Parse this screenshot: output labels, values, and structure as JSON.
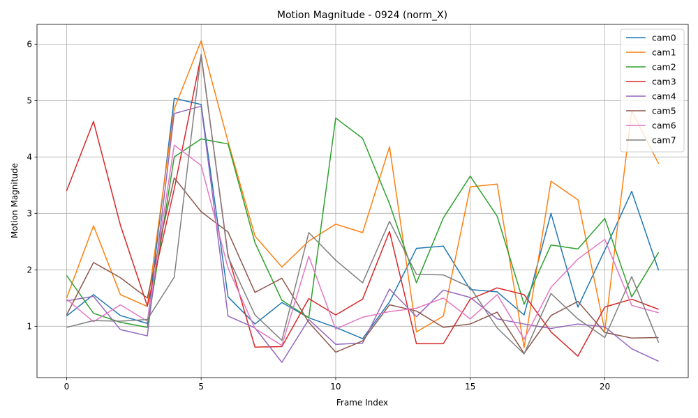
{
  "chart_data": {
    "type": "line",
    "title": "Motion Magnitude - 0924 (norm_X)",
    "xlabel": "Frame Index",
    "ylabel": "Motion Magnitude",
    "xlim": [
      -1.1,
      23.1
    ],
    "ylim": [
      0.09,
      6.35
    ],
    "xticks": [
      0,
      5,
      10,
      15,
      20
    ],
    "yticks": [
      1,
      2,
      3,
      4,
      5,
      6
    ],
    "grid": true,
    "legend_position": "top-right",
    "x": [
      0,
      1,
      2,
      3,
      4,
      5,
      6,
      7,
      8,
      9,
      10,
      11,
      12,
      13,
      14,
      15,
      16,
      17,
      18,
      19,
      20,
      21,
      22
    ],
    "series": [
      {
        "name": "cam0",
        "color": "#1f77b4",
        "values": [
          1.18,
          1.56,
          1.19,
          1.05,
          5.04,
          4.93,
          1.52,
          1.04,
          1.42,
          1.15,
          0.98,
          0.78,
          1.43,
          2.38,
          2.42,
          1.65,
          1.61,
          1.2,
          3.0,
          1.34,
          2.35,
          3.39,
          1.99
        ]
      },
      {
        "name": "cam1",
        "color": "#ff7f0e",
        "values": [
          1.5,
          2.78,
          1.56,
          1.35,
          4.85,
          6.06,
          4.27,
          2.6,
          2.05,
          2.51,
          2.81,
          2.66,
          4.18,
          0.9,
          1.18,
          3.47,
          3.52,
          0.62,
          3.57,
          3.24,
          0.92,
          4.82,
          3.88
        ]
      },
      {
        "name": "cam2",
        "color": "#2ca02c",
        "values": [
          1.9,
          1.23,
          1.07,
          0.98,
          4.0,
          4.32,
          4.23,
          2.48,
          1.46,
          1.15,
          4.69,
          4.33,
          3.17,
          1.77,
          2.92,
          3.66,
          2.95,
          1.39,
          2.44,
          2.37,
          2.91,
          1.52,
          2.31
        ]
      },
      {
        "name": "cam3",
        "color": "#d62728",
        "values": [
          3.4,
          4.63,
          2.79,
          1.36,
          3.43,
          5.8,
          2.26,
          0.63,
          0.64,
          1.49,
          1.2,
          1.48,
          2.68,
          0.69,
          0.69,
          1.48,
          1.68,
          1.56,
          0.9,
          0.47,
          1.34,
          1.48,
          1.3
        ]
      },
      {
        "name": "cam4",
        "color": "#9467bd",
        "values": [
          1.45,
          1.53,
          0.94,
          0.83,
          4.77,
          4.9,
          1.18,
          0.97,
          0.36,
          1.12,
          0.68,
          0.7,
          1.66,
          1.17,
          1.64,
          1.51,
          1.13,
          1.04,
          0.96,
          1.04,
          0.99,
          0.6,
          0.38
        ]
      },
      {
        "name": "cam5",
        "color": "#8c564b",
        "values": [
          1.2,
          2.13,
          1.86,
          1.5,
          3.63,
          3.03,
          2.67,
          1.6,
          1.85,
          1.07,
          0.54,
          0.74,
          1.38,
          1.27,
          0.98,
          1.04,
          1.25,
          0.52,
          1.19,
          1.44,
          0.89,
          0.79,
          0.8
        ]
      },
      {
        "name": "cam6",
        "color": "#e377c2",
        "values": [
          1.48,
          1.08,
          1.38,
          1.09,
          4.21,
          3.85,
          2.03,
          0.96,
          0.66,
          2.24,
          0.95,
          1.16,
          1.26,
          1.32,
          1.5,
          1.13,
          1.56,
          0.77,
          1.69,
          2.19,
          2.54,
          1.37,
          1.24
        ]
      },
      {
        "name": "cam7",
        "color": "#7f7f7f",
        "values": [
          0.98,
          1.1,
          1.09,
          1.12,
          1.87,
          5.82,
          2.23,
          1.2,
          0.75,
          2.66,
          2.17,
          1.77,
          2.86,
          1.92,
          1.91,
          1.69,
          0.97,
          0.51,
          1.58,
          1.13,
          0.8,
          1.88,
          0.71
        ]
      }
    ]
  }
}
